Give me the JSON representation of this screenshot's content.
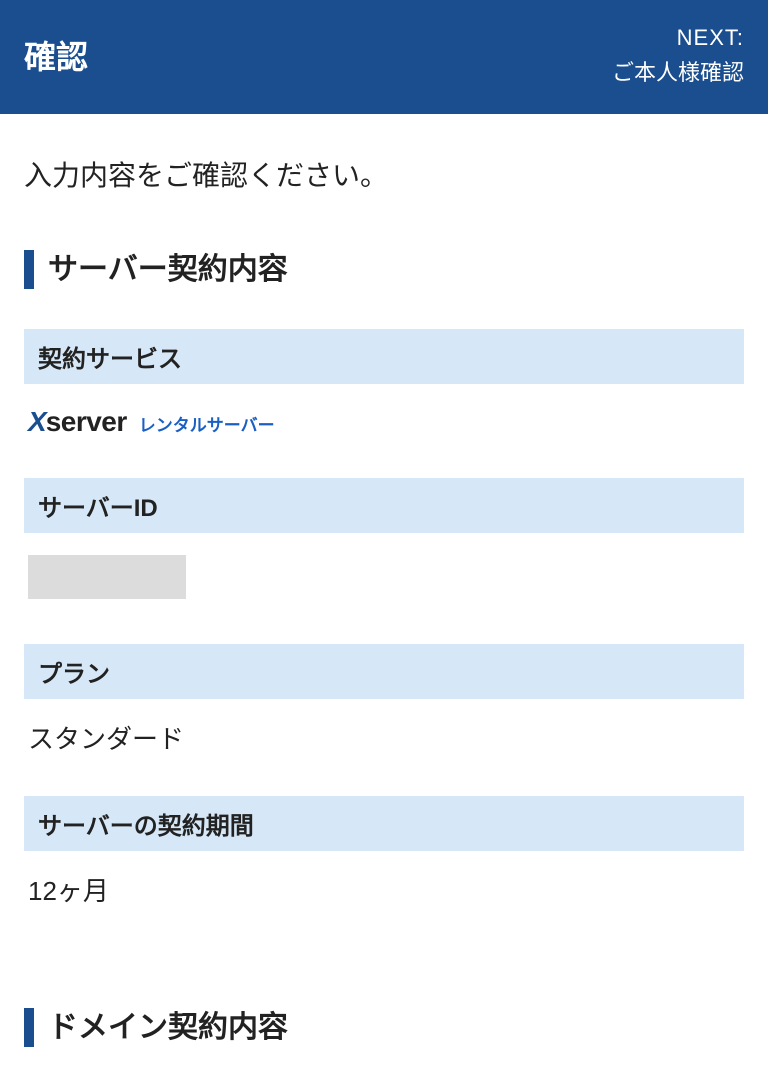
{
  "colors": {
    "header_bg": "#1a4e8f",
    "header_text": "#ffffff",
    "accent_border": "#1a4e8f",
    "field_label_bg": "#d6e8f7",
    "body_text": "#222222",
    "logo_x": "#1a4e8f",
    "logo_sub": "#1a5fc4",
    "redacted_bg": "#dcdcdc",
    "page_bg": "#ffffff"
  },
  "header": {
    "title": "確認",
    "next_label": "NEXT:",
    "next_value": "ご本人様確認"
  },
  "intro": "入力内容をご確認ください。",
  "sections": {
    "server": {
      "title": "サーバー契約内容",
      "fields": {
        "service": {
          "label": "契約サービス",
          "logo_x": "X",
          "logo_server": "server",
          "logo_sub": "レンタルサーバー"
        },
        "server_id": {
          "label": "サーバーID",
          "value": ""
        },
        "plan": {
          "label": "プラン",
          "value": "スタンダード"
        },
        "period": {
          "label": "サーバーの契約期間",
          "value": "12ヶ月"
        }
      }
    },
    "domain": {
      "title": "ドメイン契約内容"
    }
  }
}
